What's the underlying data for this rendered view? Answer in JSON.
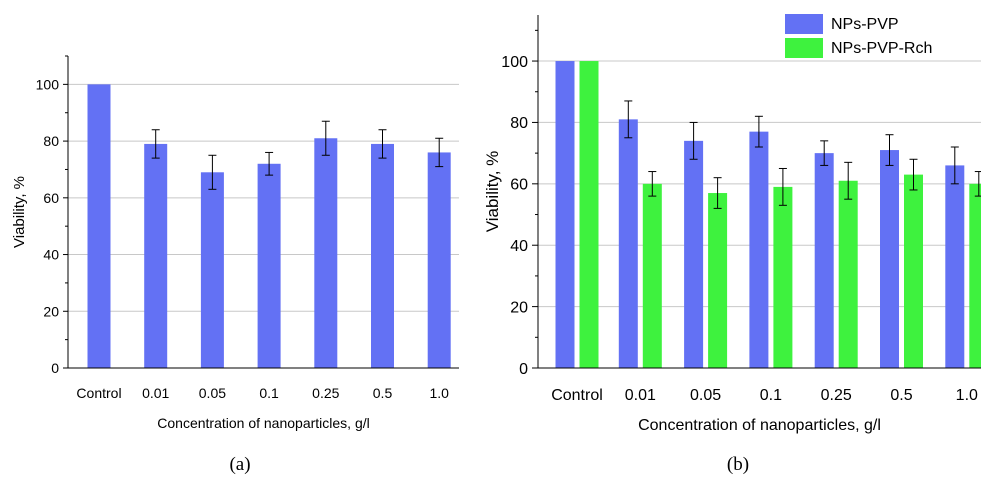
{
  "chart_data": [
    {
      "type": "bar",
      "panel_label": "(a)",
      "categories": [
        "Control",
        "0.01",
        "0.05",
        "0.1",
        "0.25",
        "0.5",
        "1.0"
      ],
      "series": [
        {
          "values": [
            100,
            79,
            69,
            72,
            81,
            79,
            76
          ],
          "errors": [
            null,
            5,
            6,
            4,
            6,
            5,
            5
          ],
          "color": "#6371f4"
        }
      ],
      "yticks": [
        0,
        20,
        40,
        60,
        80,
        100
      ],
      "xlabel": "Concentration of nanoparticles, g/l",
      "ylabel": "Viability, %",
      "ylim": [
        0,
        110
      ],
      "grid": "horizontal"
    },
    {
      "type": "bar",
      "panel_label": "(b)",
      "categories": [
        "Control",
        "0.01",
        "0.05",
        "0.1",
        "0.25",
        "0.5",
        "1.0"
      ],
      "series": [
        {
          "name": "NPs-PVP",
          "values": [
            100,
            81,
            74,
            77,
            70,
            71,
            66
          ],
          "errors": [
            null,
            6,
            6,
            5,
            4,
            5,
            6
          ],
          "color": "#6371f4"
        },
        {
          "name": "NPs-PVP-Rch",
          "values": [
            100,
            60,
            57,
            59,
            61,
            63,
            60
          ],
          "errors": [
            null,
            4,
            5,
            6,
            6,
            5,
            4
          ],
          "color": "#3ef23e"
        }
      ],
      "yticks": [
        0,
        20,
        40,
        60,
        80,
        100
      ],
      "xlabel": "Concentration of nanoparticles, g/l",
      "ylabel": "Viability, %",
      "ylim": [
        0,
        115
      ],
      "grid": "horizontal",
      "legend": "top-right"
    }
  ]
}
